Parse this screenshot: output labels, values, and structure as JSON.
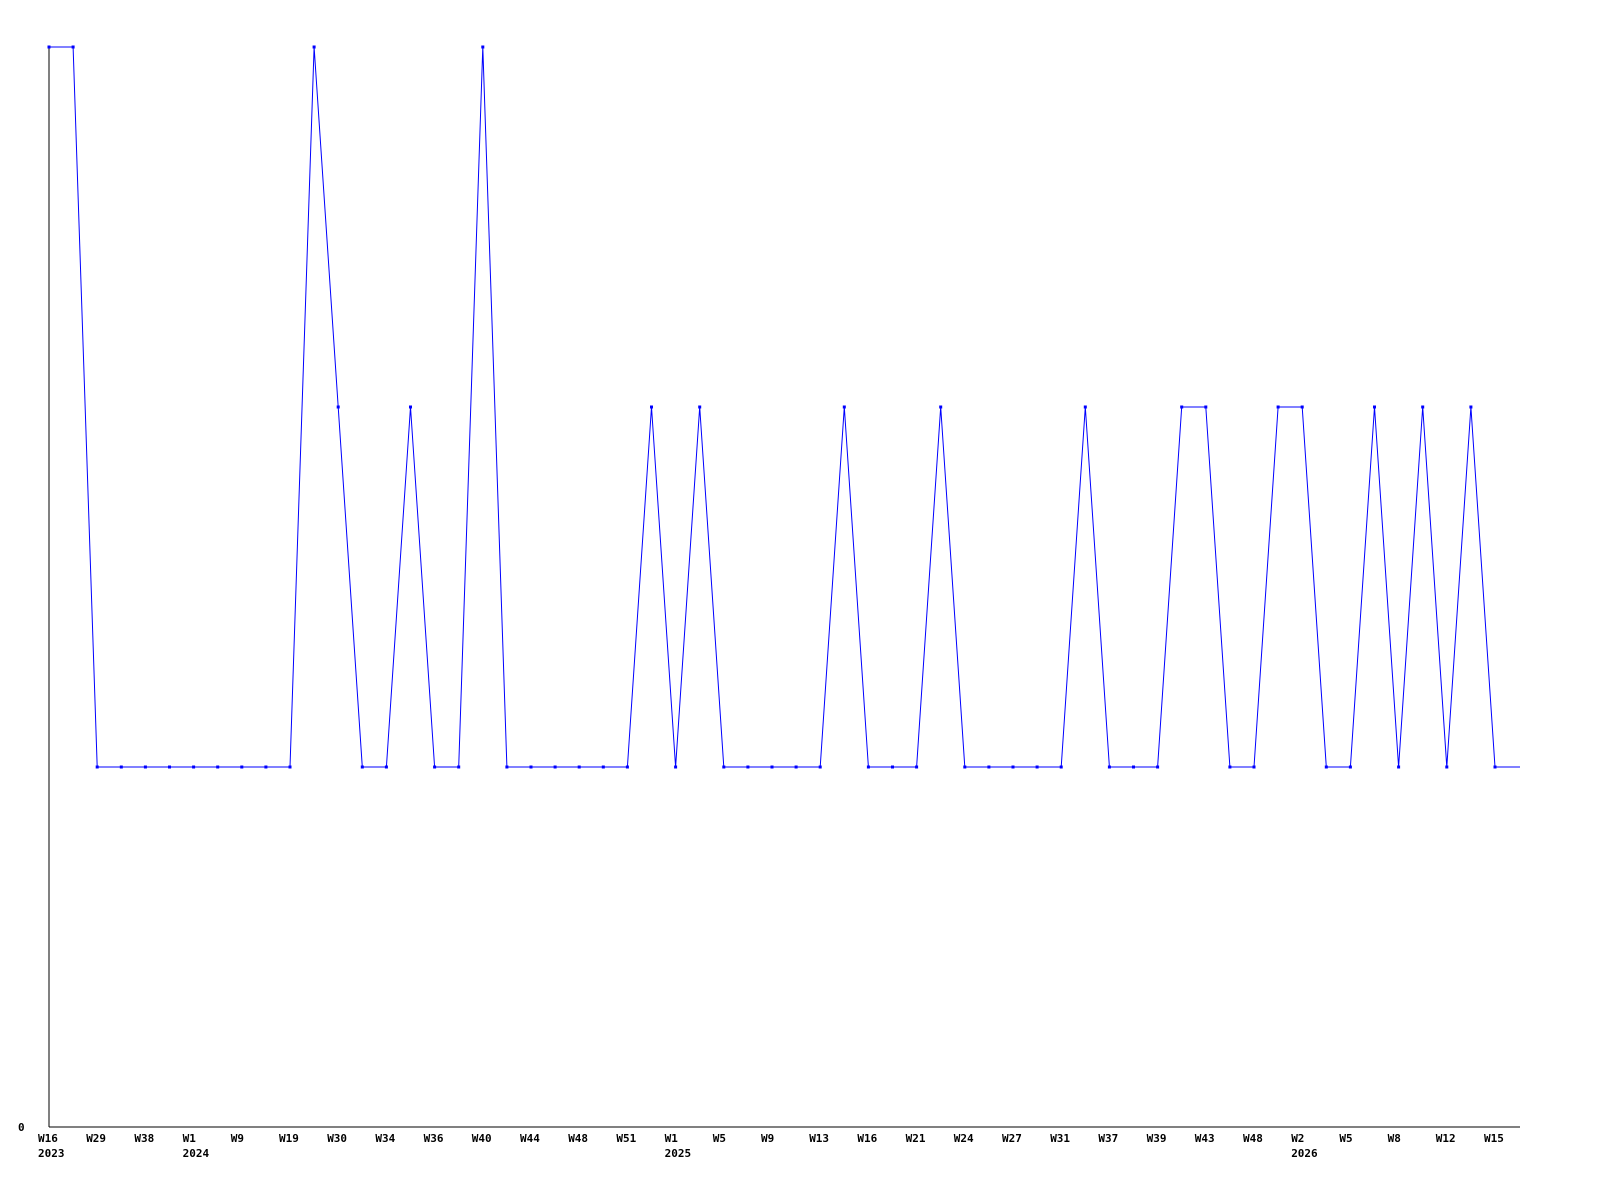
{
  "chart_data": {
    "type": "line",
    "title": "",
    "xlabel": "",
    "ylabel": "",
    "ylim": [
      0,
      3
    ],
    "y_tick_labels": [
      "0"
    ],
    "grid": false,
    "legend": "none",
    "colors": {
      "line": "#0000ff",
      "axis": "#000000"
    },
    "x_tick_labels": [
      "W16",
      "W29",
      "W38",
      "W1",
      "W9",
      "W19",
      "W30",
      "W34",
      "W36",
      "W40",
      "W44",
      "W48",
      "W51",
      "W1",
      "W5",
      "W9",
      "W13",
      "W16",
      "W21",
      "W24",
      "W27",
      "W31",
      "W37",
      "W39",
      "W43",
      "W48",
      "W2",
      "W5",
      "W8",
      "W12",
      "W15"
    ],
    "year_labels": [
      {
        "label": "2023",
        "tick_index": 0
      },
      {
        "label": "2024",
        "tick_index": 3
      },
      {
        "label": "2025",
        "tick_index": 13
      },
      {
        "label": "2026",
        "tick_index": 26
      }
    ],
    "series": [
      {
        "values": [
          3,
          3,
          1,
          1,
          1,
          1,
          1,
          1,
          1,
          1,
          1,
          3,
          2,
          1,
          1,
          2,
          1,
          1,
          3,
          1,
          1,
          1,
          1,
          1,
          1,
          2,
          1,
          2,
          1,
          1,
          1,
          1,
          1,
          2,
          1,
          1,
          1,
          2,
          1,
          1,
          1,
          1,
          1,
          2,
          1,
          1,
          1,
          2,
          2,
          1,
          1,
          2,
          2,
          1,
          1,
          2,
          1,
          2,
          1,
          2,
          1
        ]
      }
    ]
  }
}
